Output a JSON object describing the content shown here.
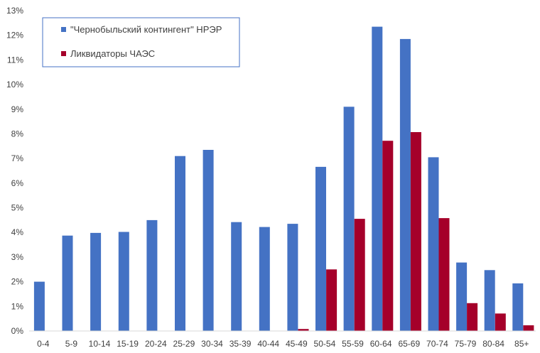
{
  "chart_data": {
    "type": "bar",
    "categories": [
      "0-4",
      "5-9",
      "10-14",
      "15-19",
      "20-24",
      "25-29",
      "30-34",
      "35-39",
      "40-44",
      "45-49",
      "50-54",
      "55-59",
      "60-64",
      "65-69",
      "70-74",
      "75-79",
      "80-84",
      "85+"
    ],
    "series": [
      {
        "name": "\"Чернобыльский контингент\" НРЭР",
        "color": "#4472C4",
        "values": [
          2.0,
          3.87,
          3.98,
          4.02,
          4.5,
          7.1,
          7.35,
          4.42,
          4.22,
          4.35,
          6.66,
          9.1,
          12.35,
          11.85,
          7.05,
          2.78,
          2.47,
          1.93
        ]
      },
      {
        "name": "Ликвидаторы ЧАЭС",
        "color": "#A5002A",
        "values": [
          0,
          0,
          0,
          0,
          0,
          0,
          0,
          0,
          0,
          0.08,
          2.5,
          4.55,
          7.72,
          8.07,
          4.58,
          1.13,
          0.71,
          0.23
        ]
      }
    ],
    "y_ticks": [
      "0%",
      "1%",
      "2%",
      "3%",
      "4%",
      "5%",
      "6%",
      "7%",
      "8%",
      "9%",
      "10%",
      "11%",
      "12%",
      "13%"
    ],
    "ylim": [
      0,
      13
    ],
    "grid": false,
    "legend_position": "top-left"
  }
}
